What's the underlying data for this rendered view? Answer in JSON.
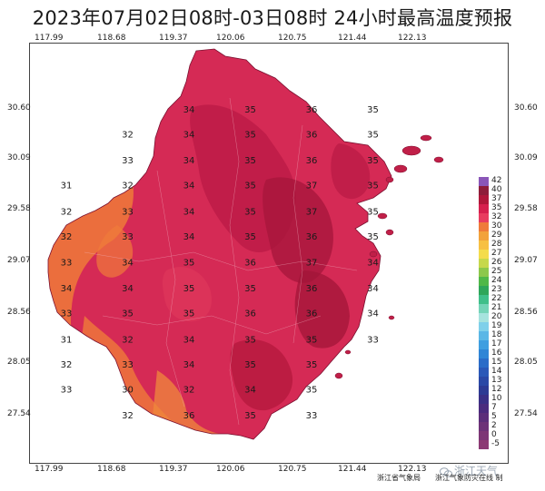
{
  "title": "2023年07月02日08时-03日08时 24小时最高温度预报",
  "lon_labels": [
    "117.99",
    "118.68",
    "119.37",
    "120.06",
    "120.75",
    "121.44",
    "122.13"
  ],
  "lat_labels": [
    "30.60",
    "30.09",
    "29.58",
    "29.07",
    "28.56",
    "28.05",
    "27.54"
  ],
  "legend": [
    {
      "label": "42",
      "color": "#8a56b8"
    },
    {
      "label": "40",
      "color": "#8e1d3a"
    },
    {
      "label": "37",
      "color": "#b0173a"
    },
    {
      "label": "35",
      "color": "#d6204e"
    },
    {
      "label": "32",
      "color": "#e83c5f"
    },
    {
      "label": "30",
      "color": "#ef7a3a"
    },
    {
      "label": "29",
      "color": "#f2a23b"
    },
    {
      "label": "28",
      "color": "#f7c043"
    },
    {
      "label": "27",
      "color": "#f4dc4c"
    },
    {
      "label": "26",
      "color": "#c6d84c"
    },
    {
      "label": "25",
      "color": "#8cc84b"
    },
    {
      "label": "24",
      "color": "#4fb848"
    },
    {
      "label": "23",
      "color": "#2ea65a"
    },
    {
      "label": "22",
      "color": "#3fbf8a"
    },
    {
      "label": "21",
      "color": "#74d4b8"
    },
    {
      "label": "20",
      "color": "#a6e3de"
    },
    {
      "label": "19",
      "color": "#7fd0ea"
    },
    {
      "label": "18",
      "color": "#5ab7e6"
    },
    {
      "label": "17",
      "color": "#3e9ee0"
    },
    {
      "label": "16",
      "color": "#2f85d6"
    },
    {
      "label": "15",
      "color": "#2a6cc8"
    },
    {
      "label": "14",
      "color": "#2a58b8"
    },
    {
      "label": "13",
      "color": "#2a48a6"
    },
    {
      "label": "12",
      "color": "#2d3a94"
    },
    {
      "label": "10",
      "color": "#3a2f86"
    },
    {
      "label": "7",
      "color": "#4b2b7e"
    },
    {
      "label": "5",
      "color": "#5c2e7a"
    },
    {
      "label": "2",
      "color": "#6d3278"
    },
    {
      "label": "0",
      "color": "#7d3676"
    },
    {
      "label": "-5",
      "color": "#8c3a74"
    }
  ],
  "temperature_grid": {
    "lons": [
      117.99,
      118.68,
      119.37,
      120.06,
      120.75,
      121.44
    ],
    "rows": [
      {
        "lat": 30.6,
        "v": [
          null,
          null,
          34,
          35,
          36,
          35
        ]
      },
      {
        "lat": 30.35,
        "v": [
          null,
          32,
          34,
          35,
          36,
          35
        ]
      },
      {
        "lat": 30.09,
        "v": [
          null,
          33,
          34,
          35,
          36,
          35
        ]
      },
      {
        "lat": 29.84,
        "v": [
          31,
          32,
          34,
          35,
          37,
          35
        ]
      },
      {
        "lat": 29.58,
        "v": [
          32,
          33,
          34,
          35,
          37,
          35
        ]
      },
      {
        "lat": 29.33,
        "v": [
          32,
          33,
          34,
          35,
          36,
          35
        ]
      },
      {
        "lat": 29.07,
        "v": [
          33,
          34,
          35,
          36,
          37,
          34
        ]
      },
      {
        "lat": 28.81,
        "v": [
          34,
          34,
          35,
          35,
          36,
          34
        ]
      },
      {
        "lat": 28.56,
        "v": [
          33,
          35,
          35,
          36,
          36,
          34
        ]
      },
      {
        "lat": 28.3,
        "v": [
          31,
          32,
          34,
          35,
          35,
          33
        ]
      },
      {
        "lat": 28.05,
        "v": [
          32,
          33,
          34,
          35,
          35,
          null
        ]
      },
      {
        "lat": 27.8,
        "v": [
          33,
          30,
          32,
          34,
          35,
          null
        ]
      },
      {
        "lat": 27.54,
        "v": [
          null,
          32,
          36,
          35,
          33,
          null
        ]
      }
    ]
  },
  "credit": {
    "agency": "浙江省气象局",
    "producer": "浙江气象防灾在线 制"
  },
  "watermark": "浙江天气"
}
